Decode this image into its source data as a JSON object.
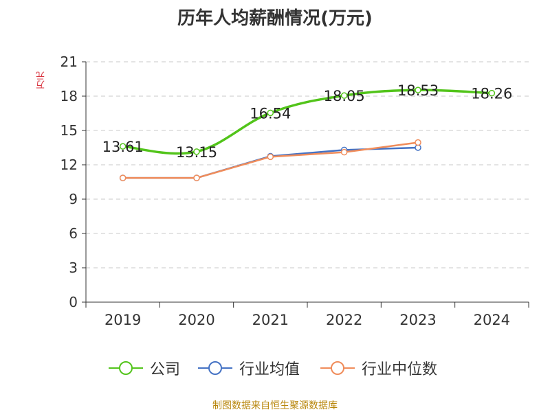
{
  "title": "历年人均薪酬情况(万元)",
  "source": "制图数据来自恒生聚源数据库",
  "colors": {
    "company": "#52c41a",
    "industry_avg": "#4472c4",
    "industry_median": "#f08c5a",
    "grid": "#c8c8c8",
    "axis": "#333333",
    "ylabel": "#d9333f",
    "source": "#b8860b"
  },
  "chart_data": {
    "type": "line",
    "title": "历年人均薪酬情况(万元)",
    "ylabel": "万元",
    "xlabel": "",
    "categories": [
      "2019",
      "2020",
      "2021",
      "2022",
      "2023",
      "2024"
    ],
    "ylim": [
      0,
      21
    ],
    "yticks": [
      0,
      3,
      6,
      9,
      12,
      15,
      18,
      21
    ],
    "grid": true,
    "legend_position": "bottom",
    "series": [
      {
        "name": "公司",
        "color": "#52c41a",
        "values": [
          13.61,
          13.15,
          16.54,
          18.05,
          18.53,
          18.26
        ],
        "labels": [
          "13.61",
          "13.15",
          "16.54",
          "18.05",
          "18.53",
          "18.26"
        ]
      },
      {
        "name": "行业均值",
        "color": "#4472c4",
        "values": [
          10.85,
          10.85,
          12.75,
          13.3,
          13.5,
          null
        ]
      },
      {
        "name": "行业中位数",
        "color": "#f08c5a",
        "values": [
          10.85,
          10.85,
          12.7,
          13.1,
          13.95,
          null
        ]
      }
    ]
  }
}
